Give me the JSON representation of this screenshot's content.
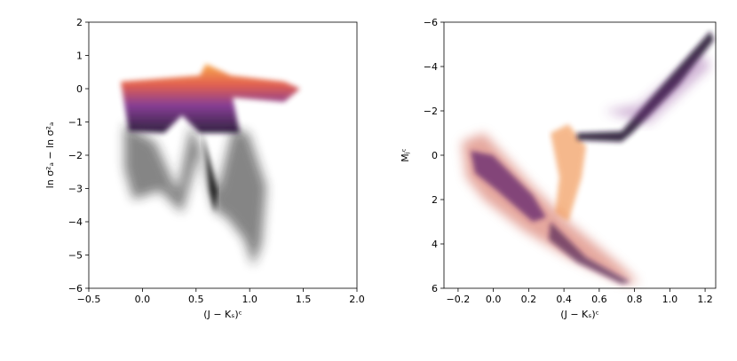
{
  "chart_data": [
    {
      "type": "scatter",
      "xlabel": "(J − Kₛ)ᶜ",
      "ylabel": "ln σ²ₐ − ln σ²ₐ",
      "xlim": [
        -0.5,
        2.0
      ],
      "ylim": [
        -6,
        2
      ],
      "xticks": [
        {
          "value": -0.5,
          "label": "−0.5"
        },
        {
          "value": 0,
          "label": "0.0"
        },
        0.5,
        {
          "value": 1,
          "label": "1.0"
        },
        1.5,
        {
          "value": 2,
          "label": "2.0"
        }
      ],
      "yticks": [
        {
          "value": -6,
          "label": "−6"
        },
        {
          "value": -5,
          "label": "−5"
        },
        {
          "value": -4,
          "label": "−4"
        },
        {
          "value": -3,
          "label": "−3"
        },
        {
          "value": -2,
          "label": "−2"
        },
        {
          "value": -1,
          "label": "−1"
        },
        0,
        1,
        2
      ]
    },
    {
      "type": "scatter",
      "xlabel": "(J − Kₛ)ᶜ",
      "ylabel": "Mⱼᶜ",
      "xlim": [
        -0.28,
        1.26
      ],
      "ylim": [
        6,
        -6
      ],
      "xticks": [
        {
          "value": -0.2,
          "label": "−0.2"
        },
        {
          "value": 0,
          "label": "0.0"
        },
        0.2,
        0.4,
        0.6,
        0.8,
        {
          "value": 1,
          "label": "1.0"
        },
        {
          "value": 1.2,
          "label": "1.2"
        }
      ],
      "yticks": [
        {
          "value": -6,
          "label": "−6"
        },
        {
          "value": -4,
          "label": "−4"
        },
        {
          "value": -2,
          "label": "−2"
        },
        0,
        2,
        4,
        6
      ]
    }
  ]
}
